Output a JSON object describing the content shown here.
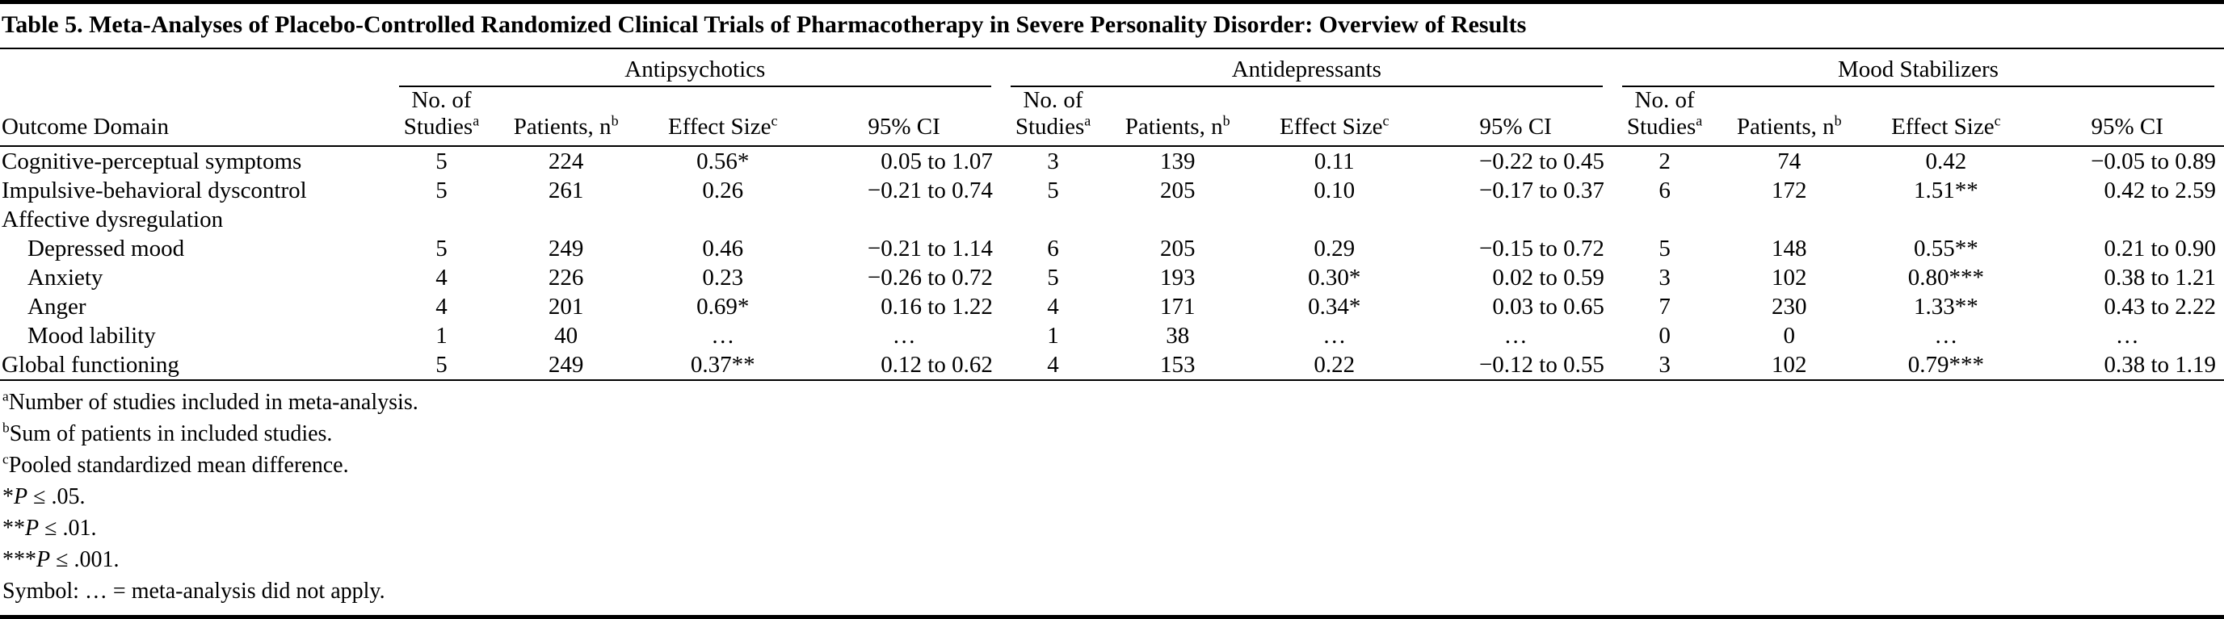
{
  "title": "Table 5. Meta-Analyses of Placebo-Controlled Randomized Clinical Trials of Pharmacotherapy in Severe Personality Disorder: Overview of Results",
  "header": {
    "outcome_domain": "Outcome Domain",
    "groups": [
      "Antipsychotics",
      "Antidepressants",
      "Mood Stabilizers"
    ],
    "columns": [
      {
        "line1": "No. of",
        "line2": "Studies",
        "sup": "a"
      },
      {
        "line1": "",
        "line2": "Patients, n",
        "sup": "b"
      },
      {
        "line1": "",
        "line2": "Effect Size",
        "sup": "c"
      },
      {
        "line1": "",
        "line2": "95% CI",
        "sup": ""
      }
    ]
  },
  "rows": [
    {
      "label": "Cognitive-perceptual symptoms",
      "indent": false,
      "cells": [
        "5",
        "224",
        "0.56*",
        "0.05 to 1.07",
        "3",
        "139",
        "0.11",
        "−0.22 to 0.45",
        "2",
        "74",
        "0.42",
        "−0.05 to 0.89"
      ]
    },
    {
      "label": "Impulsive-behavioral dyscontrol",
      "indent": false,
      "cells": [
        "5",
        "261",
        "0.26",
        "−0.21 to 0.74",
        "5",
        "205",
        "0.10",
        "−0.17 to 0.37",
        "6",
        "172",
        "1.51**",
        "0.42 to 2.59"
      ]
    },
    {
      "label": "Affective dysregulation",
      "indent": false,
      "cells": []
    },
    {
      "label": "Depressed mood",
      "indent": true,
      "cells": [
        "5",
        "249",
        "0.46",
        "−0.21 to 1.14",
        "6",
        "205",
        "0.29",
        "−0.15 to 0.72",
        "5",
        "148",
        "0.55**",
        "0.21 to 0.90"
      ]
    },
    {
      "label": "Anxiety",
      "indent": true,
      "cells": [
        "4",
        "226",
        "0.23",
        "−0.26 to 0.72",
        "5",
        "193",
        "0.30*",
        "0.02 to 0.59",
        "3",
        "102",
        "0.80***",
        "0.38 to 1.21"
      ]
    },
    {
      "label": "Anger",
      "indent": true,
      "cells": [
        "4",
        "201",
        "0.69*",
        "0.16 to 1.22",
        "4",
        "171",
        "0.34*",
        "0.03 to 0.65",
        "7",
        "230",
        "1.33**",
        "0.43 to 2.22"
      ]
    },
    {
      "label": "Mood lability",
      "indent": true,
      "cells": [
        "1",
        "40",
        "…",
        "…",
        "1",
        "38",
        "…",
        "…",
        "0",
        "0",
        "…",
        "…"
      ]
    },
    {
      "label": "Global functioning",
      "indent": false,
      "cells": [
        "5",
        "249",
        "0.37**",
        "0.12 to 0.62",
        "4",
        "153",
        "0.22",
        "−0.12 to 0.55",
        "3",
        "102",
        "0.79***",
        "0.38 to 1.19"
      ]
    }
  ],
  "footnotes": [
    {
      "sup": "a",
      "pre": "",
      "italic": "",
      "text": "Number of studies included in meta-analysis."
    },
    {
      "sup": "b",
      "pre": "",
      "italic": "",
      "text": "Sum of patients in included studies."
    },
    {
      "sup": "c",
      "pre": "",
      "italic": "",
      "text": "Pooled standardized mean difference."
    },
    {
      "sup": "",
      "pre": "*",
      "italic": "P",
      "text": " ≤ .05."
    },
    {
      "sup": "",
      "pre": "**",
      "italic": "P",
      "text": " ≤ .01."
    },
    {
      "sup": "",
      "pre": "***",
      "italic": "P",
      "text": " ≤ .001."
    },
    {
      "sup": "",
      "pre": "",
      "italic": "",
      "text": "Symbol: … = meta-analysis did not apply."
    }
  ]
}
